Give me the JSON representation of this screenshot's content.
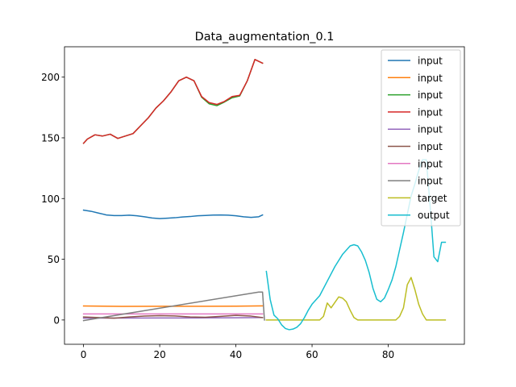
{
  "chart_data": {
    "type": "line",
    "title": "Data_augmentation_0.1",
    "xlabel": "",
    "ylabel": "",
    "xlim": [
      -5,
      100
    ],
    "ylim": [
      -20,
      225
    ],
    "xticks": [
      0,
      20,
      40,
      60,
      80
    ],
    "yticks": [
      0,
      50,
      100,
      150,
      200
    ],
    "grid": false,
    "legend_position": "top-right",
    "series": [
      {
        "name": "input",
        "color": "#1f77b4",
        "x": [
          0,
          2,
          4,
          6,
          8,
          10,
          12,
          14,
          16,
          18,
          20,
          22,
          24,
          26,
          28,
          30,
          32,
          34,
          36,
          38,
          40,
          42,
          44,
          46,
          47
        ],
        "y": [
          90.5,
          89.5,
          88,
          86.5,
          86,
          86,
          86.3,
          85.8,
          85,
          84,
          83.5,
          83.8,
          84.2,
          84.8,
          85.2,
          85.8,
          86.1,
          86.4,
          86.5,
          86.3,
          85.8,
          85,
          84.5,
          85,
          86.5
        ]
      },
      {
        "name": "input",
        "color": "#ff7f0e",
        "x": [
          0,
          10,
          20,
          30,
          40,
          47
        ],
        "y": [
          11.5,
          11.2,
          11.3,
          11.3,
          11.4,
          11.6
        ]
      },
      {
        "name": "input",
        "color": "#2ca02c",
        "x": [
          0,
          1,
          3,
          5,
          7,
          9,
          11,
          13,
          15,
          17,
          19,
          21,
          23,
          25,
          27,
          29,
          31,
          33,
          35,
          37,
          39,
          41,
          43,
          45,
          47
        ],
        "y": [
          145.5,
          149,
          152.5,
          151.5,
          153,
          149.5,
          151.5,
          153.5,
          160,
          166.5,
          174.5,
          180.5,
          188,
          197,
          200,
          197,
          183.5,
          178,
          176.5,
          179.5,
          183,
          184.5,
          197,
          214.5,
          211.5
        ]
      },
      {
        "name": "input",
        "color": "#d62728",
        "x": [
          0,
          1,
          3,
          5,
          7,
          9,
          11,
          13,
          15,
          17,
          19,
          21,
          23,
          25,
          27,
          29,
          31,
          33,
          35,
          37,
          39,
          41,
          43,
          45,
          47
        ],
        "y": [
          145.5,
          149,
          152.5,
          151.5,
          153,
          149.5,
          151.5,
          153.5,
          160,
          166.5,
          174.5,
          180.5,
          188,
          197,
          200,
          197,
          184,
          179,
          177.5,
          180,
          184,
          185,
          197,
          214.5,
          211.5
        ]
      },
      {
        "name": "input",
        "color": "#9467bd",
        "x": [
          0,
          10,
          20,
          30,
          40,
          47
        ],
        "y": [
          1.5,
          1.6,
          1.7,
          1.7,
          1.8,
          2
        ]
      },
      {
        "name": "input",
        "color": "#8c564b",
        "x": [
          0,
          4,
          8,
          12,
          16,
          20,
          24,
          28,
          32,
          36,
          40,
          44,
          47
        ],
        "y": [
          2.5,
          2,
          1.5,
          2.5,
          3.2,
          3.6,
          3.3,
          2.5,
          2.2,
          3,
          3.8,
          3.2,
          2
        ]
      },
      {
        "name": "input",
        "color": "#e377c2",
        "x": [
          0,
          10,
          20,
          30,
          40,
          47
        ],
        "y": [
          5,
          5,
          5,
          5,
          5,
          5
        ]
      },
      {
        "name": "input",
        "color": "#7f7f7f",
        "x": [
          0,
          46,
          47,
          47.5
        ],
        "y": [
          -0.5,
          23,
          23,
          0
        ]
      },
      {
        "name": "target",
        "color": "#bcbd22",
        "x": [
          48,
          62,
          63,
          64,
          65,
          67,
          68,
          69,
          70,
          71,
          72,
          80,
          82,
          83,
          84,
          85,
          86,
          87,
          88,
          89,
          90,
          91,
          93,
          95
        ],
        "y": [
          0,
          0,
          3,
          14,
          10,
          19,
          18,
          15,
          8,
          2,
          0,
          0,
          0,
          3,
          10,
          29,
          35,
          25,
          13,
          5,
          0,
          0,
          0,
          0
        ]
      },
      {
        "name": "output",
        "color": "#17becf",
        "x": [
          48,
          49,
          50,
          51,
          52,
          53,
          54,
          55,
          56,
          57,
          58,
          59,
          60,
          62,
          64,
          66,
          68,
          70,
          71,
          72,
          73,
          74,
          75,
          76,
          77,
          78,
          79,
          80,
          81,
          82,
          83,
          84,
          85,
          86,
          87,
          88,
          89,
          90,
          91,
          92,
          93,
          94,
          95
        ],
        "y": [
          40,
          17,
          4,
          1,
          -4,
          -7,
          -8,
          -7.5,
          -6,
          -3,
          2,
          8,
          13,
          20,
          32,
          44,
          54,
          61,
          62,
          61,
          56,
          49,
          39,
          26,
          17,
          15,
          18,
          25,
          33,
          44,
          58,
          72,
          87,
          102,
          112,
          123,
          132,
          132,
          94,
          52,
          48,
          64,
          64
        ]
      }
    ]
  }
}
